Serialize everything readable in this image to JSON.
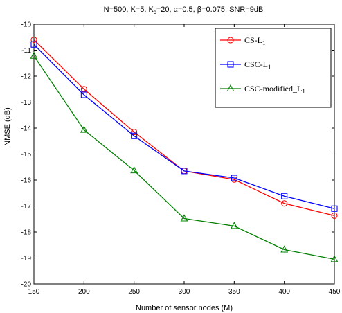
{
  "chart_data": {
    "type": "line",
    "title": "N=500, K=5, K_c=20, α=0.5, β=0.075, SNR=9dB",
    "title_parts": {
      "prefix": "N=500, K=5, K",
      "sub": "c",
      "suffix": "=20, α=0.5, β=0.075, SNR=9dB"
    },
    "xlabel": "Number of sensor nodes (M)",
    "ylabel": "NMSE (dB)",
    "xlim": [
      150,
      450
    ],
    "ylim": [
      -20,
      -10
    ],
    "xticks": [
      "150",
      "200",
      "250",
      "300",
      "350",
      "400",
      "450"
    ],
    "yticks": [
      "-10",
      "-11",
      "-12",
      "-13",
      "-14",
      "-15",
      "-16",
      "-17",
      "-18",
      "-19",
      "-20"
    ],
    "grid": false,
    "legend_position": "top-right",
    "x": [
      150,
      200,
      250,
      300,
      350,
      400,
      450
    ],
    "series": [
      {
        "name": "CS-L_1",
        "label_main": "CS-L",
        "label_sub": "1",
        "label_tail": "",
        "color": "#ff0000",
        "marker": "circle",
        "values": [
          -10.6,
          -12.5,
          -14.15,
          -15.65,
          -15.98,
          -16.9,
          -17.37
        ]
      },
      {
        "name": "CSC-L_1",
        "label_main": "CSC-L",
        "label_sub": "1",
        "label_tail": "",
        "color": "#0000ff",
        "marker": "square",
        "values": [
          -10.78,
          -12.72,
          -14.3,
          -15.65,
          -15.92,
          -16.62,
          -17.1
        ]
      },
      {
        "name": "CSC-modified_L_1",
        "label_main": "CSC-modified_L",
        "label_sub": "1",
        "label_tail": "",
        "color": "#008000",
        "marker": "triangle",
        "values": [
          -11.22,
          -14.07,
          -15.63,
          -17.48,
          -17.77,
          -18.68,
          -19.05
        ]
      }
    ]
  }
}
